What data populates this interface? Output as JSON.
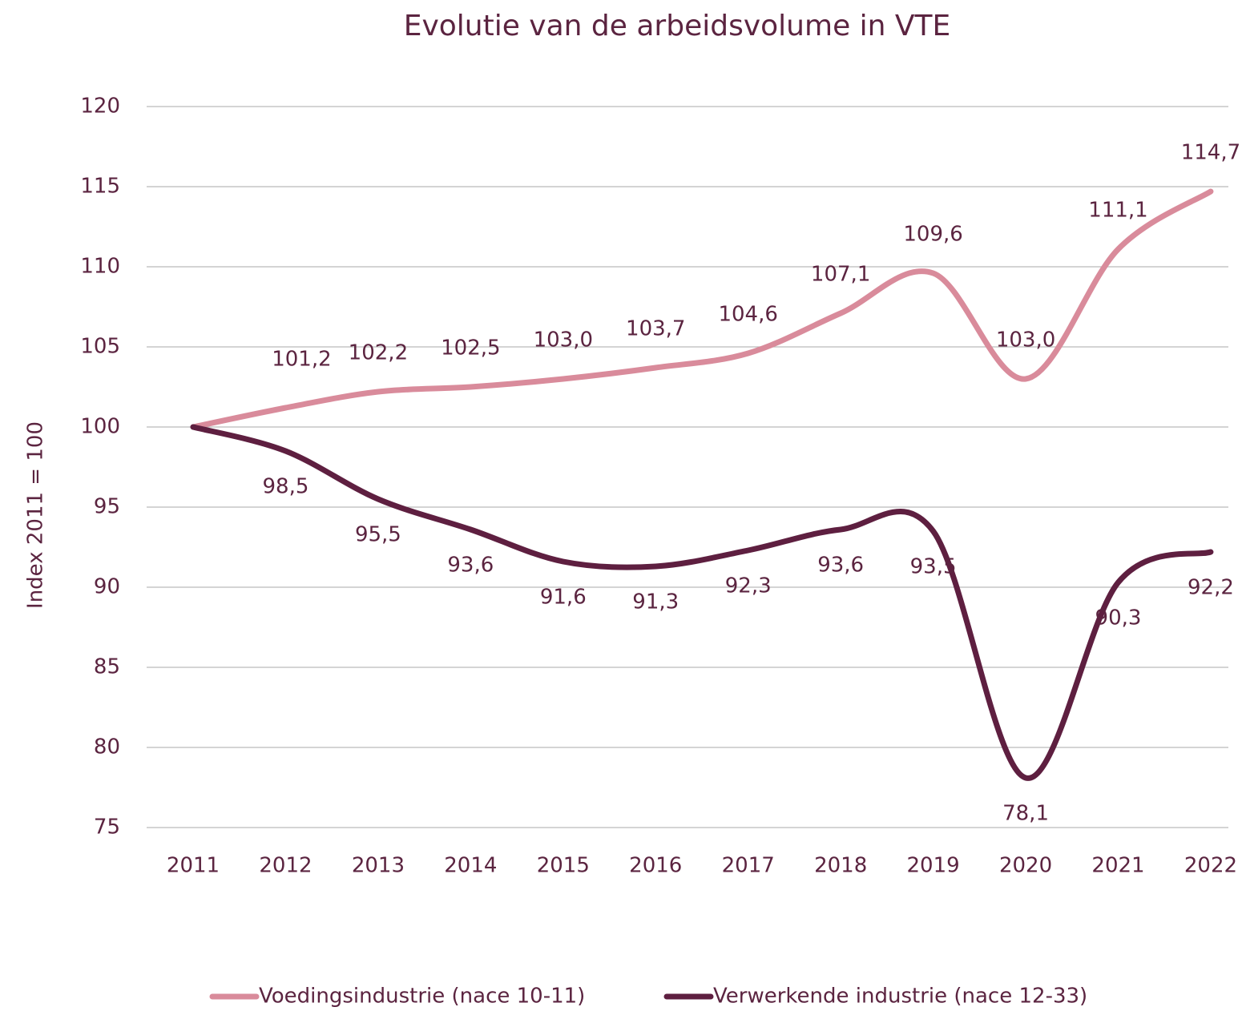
{
  "chart_data": {
    "type": "line",
    "title": "Evolutie van de arbeidsvolume in VTE",
    "y_label": "Index 2011 = 100",
    "categories": [
      "2011",
      "2012",
      "2013",
      "2014",
      "2015",
      "2016",
      "2017",
      "2018",
      "2019",
      "2020",
      "2021",
      "2022"
    ],
    "series": [
      {
        "name": "Voedingsindustrie (nace 10-11)",
        "color": "#d98b9b",
        "values": [
          100,
          101.2,
          102.2,
          102.5,
          103.0,
          103.7,
          104.6,
          107.1,
          109.6,
          103.0,
          111.1,
          114.7
        ],
        "value_labels": [
          null,
          "101,2",
          "102,2",
          "102,5",
          "103,0",
          "103,7",
          "104,6",
          "107,1",
          "109,6",
          "103,0",
          "111,1",
          "114,7"
        ]
      },
      {
        "name": "Verwerkende industrie (nace 12-33)",
        "color": "#5e1f40",
        "values": [
          100,
          98.5,
          95.5,
          93.6,
          91.6,
          91.3,
          92.3,
          93.6,
          93.5,
          78.1,
          90.3,
          92.2
        ],
        "value_labels": [
          null,
          "98,5",
          "95,5",
          "93,6",
          "91,6",
          "91,3",
          "92,3",
          "93,6",
          "93,5",
          "78,1",
          "90,3",
          "92,2"
        ]
      }
    ],
    "ylim": [
      75,
      120
    ],
    "yticks": [
      75,
      80,
      85,
      90,
      95,
      100,
      105,
      110,
      115,
      120
    ],
    "grid": true,
    "smooth": true,
    "legend": "bottom"
  }
}
